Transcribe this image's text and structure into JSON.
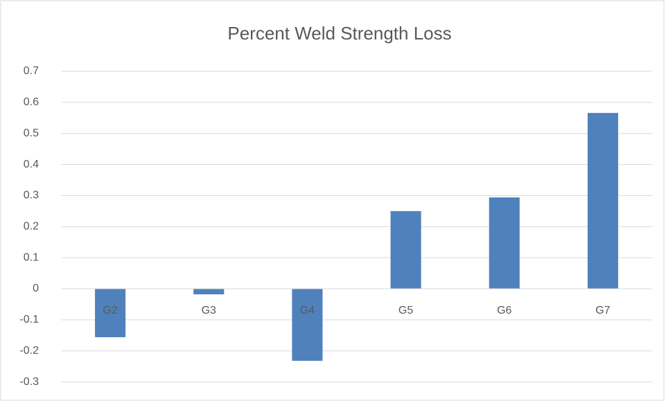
{
  "chart_data": {
    "type": "bar",
    "title": "Percent Weld Strength Loss",
    "categories": [
      "G2",
      "G3",
      "G4",
      "G5",
      "G6",
      "G7"
    ],
    "values": [
      -0.156,
      -0.018,
      -0.232,
      0.25,
      0.294,
      0.566
    ],
    "color": "#4f81bd",
    "ylim": [
      -0.3,
      0.7
    ],
    "yticks": [
      -0.3,
      -0.2,
      -0.1,
      0,
      0.1,
      0.2,
      0.3,
      0.4,
      0.5,
      0.6,
      0.7
    ],
    "grid": true
  }
}
